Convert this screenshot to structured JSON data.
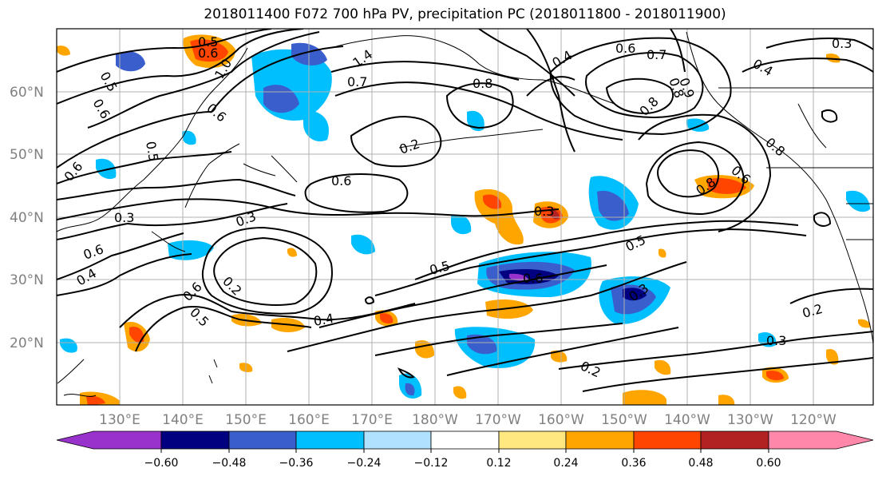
{
  "title": "2018011400 F072 700 hPa PV, precipitation PC (2018011800 - 2018011900)",
  "longitude_labels": [
    "130°E",
    "140°E",
    "150°E",
    "160°E",
    "170°E",
    "180°W",
    "170°W",
    "160°W",
    "150°W",
    "140°W",
    "130°W",
    "120°W"
  ],
  "latitude_labels": [
    "60°N",
    "50°N",
    "40°N",
    "30°N",
    "20°N"
  ],
  "colorbar": {
    "colors": [
      "#9932cc",
      "#000080",
      "#3a5fcd",
      "#00bfff",
      "#b0e2ff",
      "#ffffff",
      "#ffe880",
      "#ffa500",
      "#ff4500",
      "#b22222",
      "#ff88aa"
    ],
    "ticks": [
      "−0.60",
      "−0.48",
      "−0.36",
      "−0.24",
      "−0.12",
      "0.12",
      "0.24",
      "0.36",
      "0.48",
      "0.60"
    ]
  },
  "contour_labels": [
    "0.5",
    "0.6",
    "1.4",
    "0.7",
    "0.8",
    "0.4",
    "0.6",
    "0.7",
    "0.8",
    "0.9",
    "0.8",
    "0.3",
    "0.4",
    "0.5",
    "0.6",
    "0.6",
    "0.5",
    "0.6",
    "0.2",
    "0.6",
    "0.3",
    "0.6",
    "0.4",
    "0.2",
    "0.6",
    "0.5",
    "0.3",
    "0.5",
    "0.3",
    "0.5",
    "0.3",
    "0.4",
    "0.2",
    "0.3",
    "0.2",
    "0.8",
    "0.6",
    "1.0",
    "0.6",
    "0.8"
  ]
}
